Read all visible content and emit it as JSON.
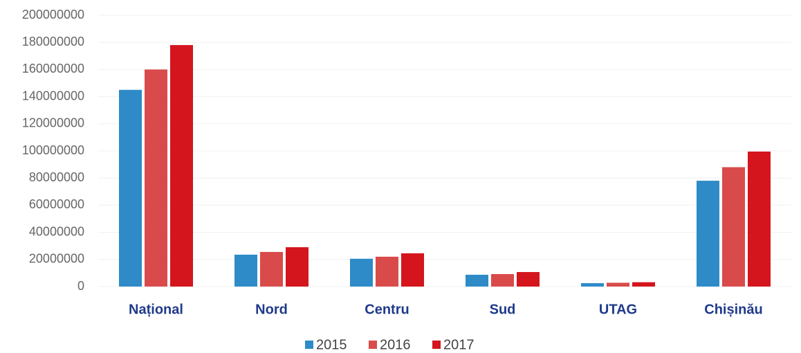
{
  "chart_data": {
    "type": "bar",
    "categories": [
      "Național",
      "Nord",
      "Centru",
      "Sud",
      "UTAG",
      "Chișinău"
    ],
    "series": [
      {
        "name": "2015",
        "color": "#2e8bc7",
        "values": [
          145000000,
          23500000,
          20500000,
          8700000,
          2500000,
          78000000
        ]
      },
      {
        "name": "2016",
        "color": "#d94b4b",
        "values": [
          160000000,
          25500000,
          22000000,
          9200000,
          2800000,
          88000000
        ]
      },
      {
        "name": "2017",
        "color": "#d4151d",
        "values": [
          178000000,
          29000000,
          24500000,
          10700000,
          3200000,
          99500000
        ]
      }
    ],
    "ylim": [
      0,
      200000000
    ],
    "yticks": [
      0,
      20000000,
      40000000,
      60000000,
      80000000,
      100000000,
      120000000,
      140000000,
      160000000,
      180000000,
      200000000
    ],
    "grid": true,
    "legend": "bottom"
  }
}
